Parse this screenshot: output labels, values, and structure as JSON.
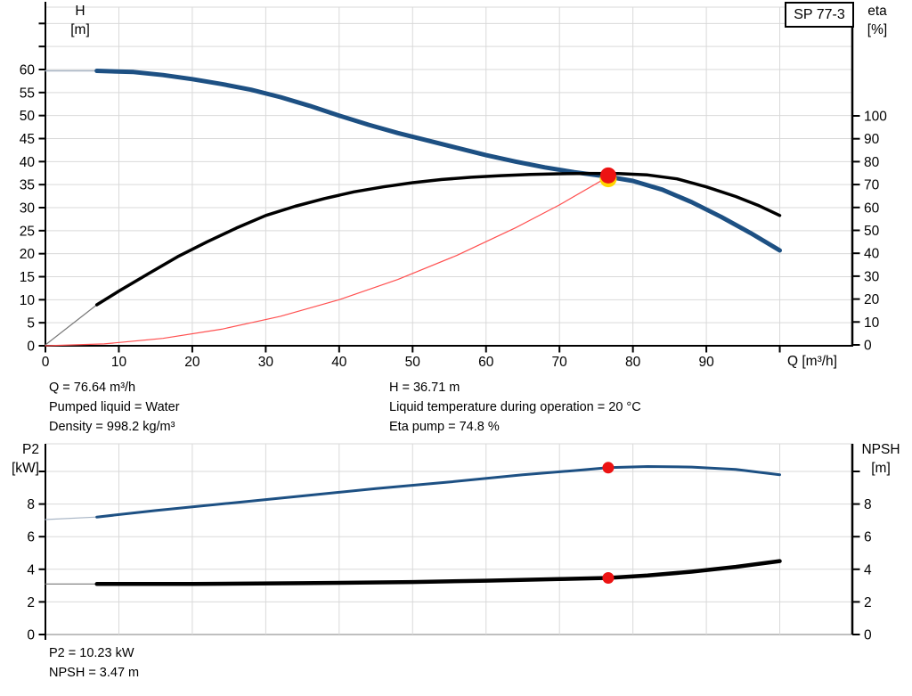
{
  "pump_label": "SP 77-3",
  "colors": {
    "curve_blue": "#1d5083",
    "curve_black": "#000000",
    "system_red": "#ff5050",
    "lead_gray_blue": "#a9b6c6",
    "lead_gray": "#777777",
    "duty_red": "#ec1313",
    "duty_yellow": "#ffd500",
    "grid": "#d9d9d9",
    "axis": "#000000"
  },
  "annotations": {
    "chart1_left": [
      "Q = 76.64 m³/h",
      "Pumped liquid = Water",
      "Density = 998.2 kg/m³"
    ],
    "chart1_right": [
      "H = 36.71 m",
      "Liquid temperature during operation = 20 °C",
      "Eta pump = 74.8 %"
    ],
    "chart2": [
      "P2 = 10.23 kW",
      "NPSH = 3.47 m"
    ]
  },
  "chart_data": [
    {
      "type": "line",
      "title": "QH / efficiency curves for pump SP 77-3",
      "x_axis": {
        "label": "Q [m³/h]",
        "min": 0,
        "max": 110,
        "ticks": [
          0,
          10,
          20,
          30,
          40,
          50,
          60,
          70,
          80,
          90
        ],
        "unlabeled_ticks": [
          100
        ],
        "grid": [
          10,
          20,
          30,
          40,
          50,
          60,
          70,
          80,
          90,
          100
        ]
      },
      "y_left": {
        "label": "H",
        "unit": "[m]",
        "min": 0,
        "max": 73.5,
        "ticks": [
          0,
          5,
          10,
          15,
          20,
          25,
          30,
          35,
          40,
          45,
          50,
          55,
          60
        ],
        "unlabeled_ticks": [
          65,
          70
        ],
        "grid": [
          5,
          10,
          15,
          20,
          25,
          30,
          35,
          40,
          45,
          50,
          55,
          60,
          65,
          70
        ]
      },
      "y_right": {
        "label": "eta",
        "unit": "[%]",
        "min": 0,
        "max": 147.5,
        "ticks": [
          0,
          10,
          20,
          30,
          40,
          50,
          60,
          70,
          80,
          90,
          100
        ],
        "unlabeled_ticks": []
      },
      "legend_position": "none",
      "grid_on": true,
      "series": [
        {
          "name": "head-lead-in",
          "yscale": "h",
          "color_key": "lead_gray_blue",
          "width": 1.5,
          "points": [
            [
              0,
              59.7
            ],
            [
              7,
              59.7
            ]
          ]
        },
        {
          "name": "QH head curve",
          "yscale": "h",
          "color_key": "curve_blue",
          "width": 5,
          "points": [
            [
              7,
              59.7
            ],
            [
              12,
              59.45
            ],
            [
              16,
              58.8
            ],
            [
              20,
              57.9
            ],
            [
              24,
              56.85
            ],
            [
              28,
              55.6
            ],
            [
              32,
              54.0
            ],
            [
              36,
              52.1
            ],
            [
              40,
              50.0
            ],
            [
              44,
              48.0
            ],
            [
              48,
              46.2
            ],
            [
              52,
              44.6
            ],
            [
              56,
              43.0
            ],
            [
              60,
              41.4
            ],
            [
              64,
              40.0
            ],
            [
              68,
              38.75
            ],
            [
              72,
              37.7
            ],
            [
              76.64,
              36.71
            ],
            [
              80,
              35.8
            ],
            [
              84,
              33.9
            ],
            [
              88,
              31.2
            ],
            [
              92,
              28.0
            ],
            [
              96,
              24.5
            ],
            [
              100,
              20.7
            ]
          ]
        },
        {
          "name": "eta-lead-in",
          "yscale": "eta",
          "color_key": "lead_gray",
          "width": 1.2,
          "points": [
            [
              0,
              0
            ],
            [
              7,
              17.5
            ]
          ]
        },
        {
          "name": "eta efficiency curve",
          "yscale": "eta",
          "color_key": "curve_black",
          "width": 3.5,
          "points": [
            [
              7,
              17.5
            ],
            [
              10,
              23.5
            ],
            [
              14,
              31
            ],
            [
              18,
              38.5
            ],
            [
              22,
              45
            ],
            [
              26,
              51
            ],
            [
              30,
              56.5
            ],
            [
              34,
              60.5
            ],
            [
              38,
              63.9
            ],
            [
              42,
              66.8
            ],
            [
              46,
              69
            ],
            [
              50,
              70.8
            ],
            [
              54,
              72.2
            ],
            [
              58,
              73.2
            ],
            [
              62,
              73.9
            ],
            [
              66,
              74.4
            ],
            [
              70,
              74.7
            ],
            [
              74,
              74.85
            ],
            [
              78,
              74.8
            ],
            [
              82,
              74.2
            ],
            [
              86,
              72.5
            ],
            [
              90,
              69.0
            ],
            [
              94,
              64.8
            ],
            [
              97,
              61.0
            ],
            [
              100,
              56.5
            ]
          ]
        },
        {
          "name": "system curve",
          "yscale": "h",
          "color_key": "system_red",
          "width": 1.2,
          "points": [
            [
              0,
              0
            ],
            [
              8,
              0.4
            ],
            [
              16,
              1.6
            ],
            [
              24,
              3.6
            ],
            [
              32,
              6.4
            ],
            [
              40,
              10.0
            ],
            [
              48,
              14.4
            ],
            [
              56,
              19.6
            ],
            [
              64,
              25.6
            ],
            [
              70,
              30.6
            ],
            [
              76.64,
              36.71
            ]
          ]
        }
      ],
      "duty_point": {
        "Q": 76.64,
        "H": 36.71,
        "eta": 74.8,
        "marker": {
          "yscale": "h",
          "q": 76.64,
          "v": 36.71,
          "r": 9,
          "ring_r": 9.5,
          "ring_dy": 3.8
        }
      }
    },
    {
      "type": "line",
      "title": "P2 power and NPSH curves",
      "x_axis": {
        "label": "",
        "min": 0,
        "max": 110,
        "ticks": [],
        "unlabeled_ticks": [],
        "grid": [
          10,
          20,
          30,
          40,
          50,
          60,
          70,
          80,
          90,
          100
        ]
      },
      "y_left": {
        "label": "P2",
        "unit": "[kW]",
        "min": 0,
        "max": 11.7,
        "ticks": [
          0,
          2,
          4,
          6,
          8
        ],
        "unlabeled_ticks": [
          10
        ],
        "grid": [
          2,
          4,
          6,
          8,
          10
        ]
      },
      "y_right": {
        "label": "NPSH",
        "unit": "[m]",
        "min": 0,
        "max": 11.7,
        "ticks": [
          0,
          2,
          4,
          6,
          8
        ],
        "unlabeled_ticks": [
          10
        ]
      },
      "legend_position": "none",
      "grid_on": true,
      "series": [
        {
          "name": "p2-lead-in",
          "yscale": "v2",
          "color_key": "lead_gray_blue",
          "width": 1.2,
          "points": [
            [
              0,
              7.05
            ],
            [
              7,
              7.2
            ]
          ]
        },
        {
          "name": "P2 power curve",
          "yscale": "v2",
          "color_key": "curve_blue",
          "width": 3,
          "points": [
            [
              7,
              7.2
            ],
            [
              15,
              7.6
            ],
            [
              25,
              8.05
            ],
            [
              35,
              8.5
            ],
            [
              45,
              8.95
            ],
            [
              55,
              9.35
            ],
            [
              65,
              9.8
            ],
            [
              72,
              10.05
            ],
            [
              76.64,
              10.23
            ],
            [
              82,
              10.3
            ],
            [
              88,
              10.27
            ],
            [
              94,
              10.12
            ],
            [
              100,
              9.8
            ]
          ]
        },
        {
          "name": "npsh-lead-in",
          "yscale": "v2",
          "color_key": "lead_gray",
          "width": 1.2,
          "points": [
            [
              0,
              3.1
            ],
            [
              7,
              3.1
            ]
          ]
        },
        {
          "name": "NPSH curve",
          "yscale": "v2",
          "color_key": "curve_black",
          "width": 4.5,
          "points": [
            [
              7,
              3.1
            ],
            [
              20,
              3.1
            ],
            [
              35,
              3.15
            ],
            [
              50,
              3.22
            ],
            [
              60,
              3.3
            ],
            [
              70,
              3.4
            ],
            [
              76.64,
              3.47
            ],
            [
              82,
              3.62
            ],
            [
              88,
              3.85
            ],
            [
              94,
              4.15
            ],
            [
              100,
              4.5
            ]
          ]
        }
      ],
      "duty_point": {
        "Q": 76.64,
        "P2": 10.23,
        "NPSH": 3.47,
        "markers": [
          {
            "yscale": "v2",
            "q": 76.64,
            "v": 10.23,
            "r": 6.5
          },
          {
            "yscale": "v2",
            "q": 76.64,
            "v": 3.47,
            "r": 6.5
          }
        ]
      }
    }
  ]
}
